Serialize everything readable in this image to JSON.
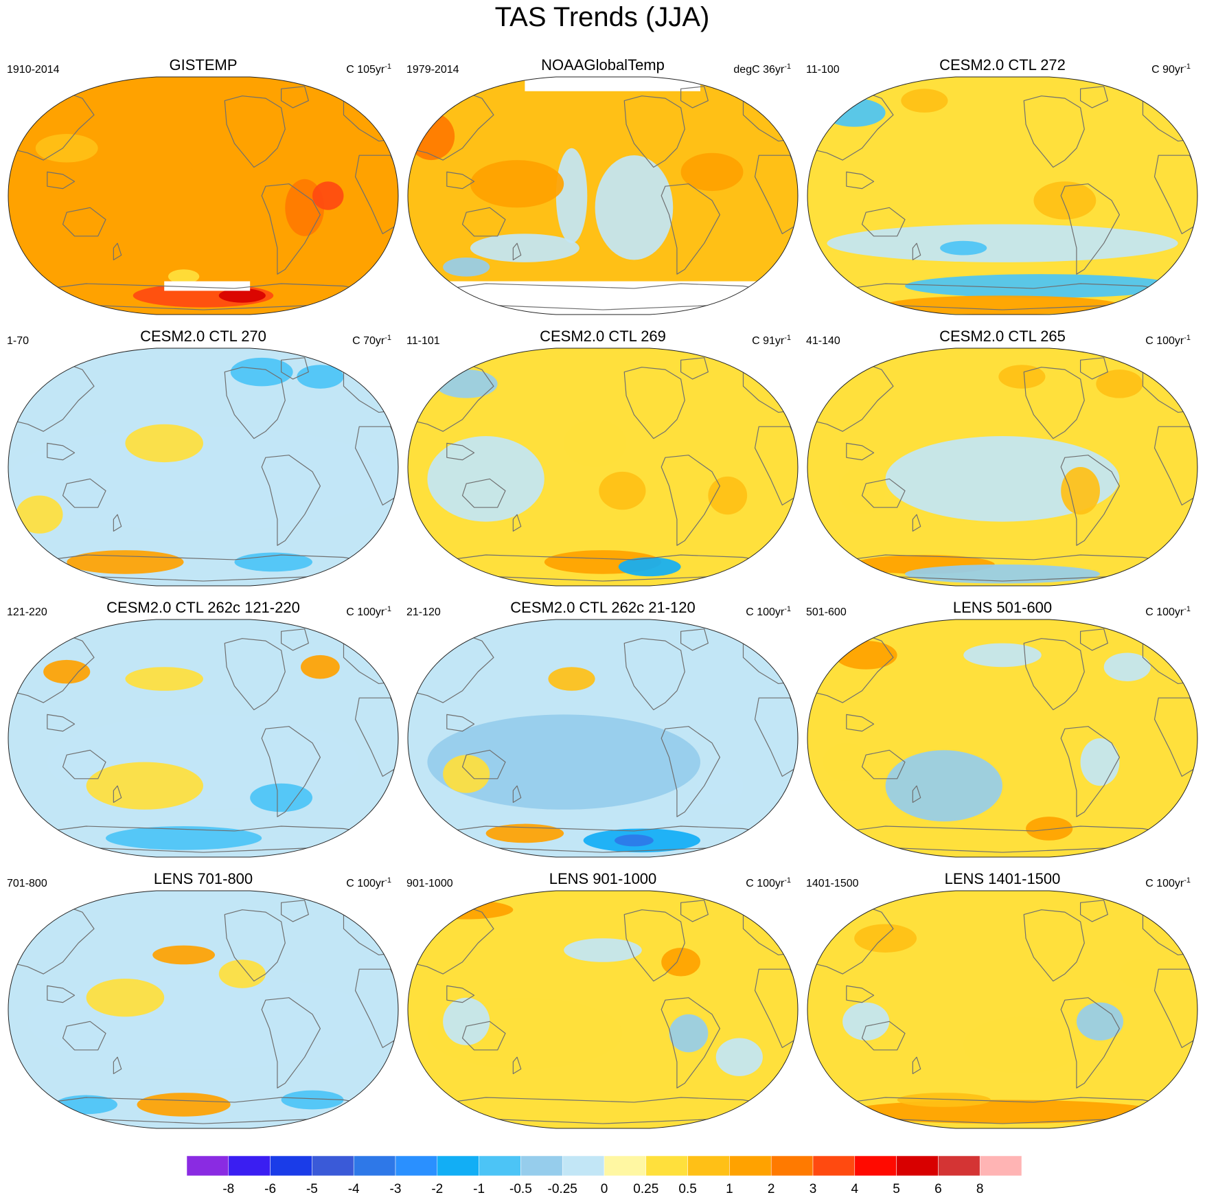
{
  "chart_data": {
    "type": "heatmap",
    "title": "TAS Trends (JJA)",
    "projection": "Robinson-like global map, Pacific-centered",
    "panels": [
      {
        "title": "GISTEMP",
        "period": "1910-2014",
        "units": "C 105yr",
        "units_exp": "-1",
        "base_level": 1,
        "missing": "polar"
      },
      {
        "title": "NOAAGlobalTemp",
        "period": "1979-2014",
        "units": "degC 36yr",
        "units_exp": "-1",
        "base_level": 0.5,
        "missing": "polar"
      },
      {
        "title": "CESM2.0 CTL 272",
        "period": "11-100",
        "units": "C 90yr",
        "units_exp": "-1",
        "base_level": 0.25,
        "missing": "none"
      },
      {
        "title": "CESM2.0 CTL 270",
        "period": "1-70",
        "units": "C 70yr",
        "units_exp": "-1",
        "base_level": -0.25,
        "missing": "none"
      },
      {
        "title": "CESM2.0 CTL 269",
        "period": "11-101",
        "units": "C 91yr",
        "units_exp": "-1",
        "base_level": 0.25,
        "missing": "none"
      },
      {
        "title": "CESM2.0 CTL 265",
        "period": "41-140",
        "units": "C 100yr",
        "units_exp": "-1",
        "base_level": 0.25,
        "missing": "none"
      },
      {
        "title": "CESM2.0 CTL 262c 121-220",
        "period": "121-220",
        "units": "C 100yr",
        "units_exp": "-1",
        "base_level": -0.25,
        "missing": "none"
      },
      {
        "title": "CESM2.0 CTL 262c 21-120",
        "period": "21-120",
        "units": "C 100yr",
        "units_exp": "-1",
        "base_level": -0.25,
        "missing": "none"
      },
      {
        "title": "LENS 501-600",
        "period": "501-600",
        "units": "C 100yr",
        "units_exp": "-1",
        "base_level": 0.25,
        "missing": "none"
      },
      {
        "title": "LENS 701-800",
        "period": "701-800",
        "units": "C 100yr",
        "units_exp": "-1",
        "base_level": -0.25,
        "missing": "none"
      },
      {
        "title": "LENS 901-1000",
        "period": "901-1000",
        "units": "C 100yr",
        "units_exp": "-1",
        "base_level": 0.25,
        "missing": "none"
      },
      {
        "title": "LENS 1401-1500",
        "period": "1401-1500",
        "units": "C 100yr",
        "units_exp": "-1",
        "base_level": 0.25,
        "missing": "none"
      }
    ],
    "colorbar": {
      "levels": [
        "-8",
        "-6",
        "-5",
        "-4",
        "-3",
        "-2",
        "-1",
        "-0.5",
        "-0.25",
        "0",
        "0.25",
        "0.5",
        "1",
        "2",
        "3",
        "4",
        "5",
        "6",
        "8"
      ],
      "colors": [
        "#8a2be2",
        "#3a1ef2",
        "#1a3ce8",
        "#3a5ad8",
        "#2e78e8",
        "#2a90ff",
        "#12aef5",
        "#4cc4f6",
        "#96cdec",
        "#c2e6f6",
        "#fff7a2",
        "#ffe03c",
        "#ffc016",
        "#ffa200",
        "#ff7a00",
        "#ff4a10",
        "#ff0a00",
        "#d80000",
        "#d43434",
        "#ffb4b4"
      ]
    }
  }
}
